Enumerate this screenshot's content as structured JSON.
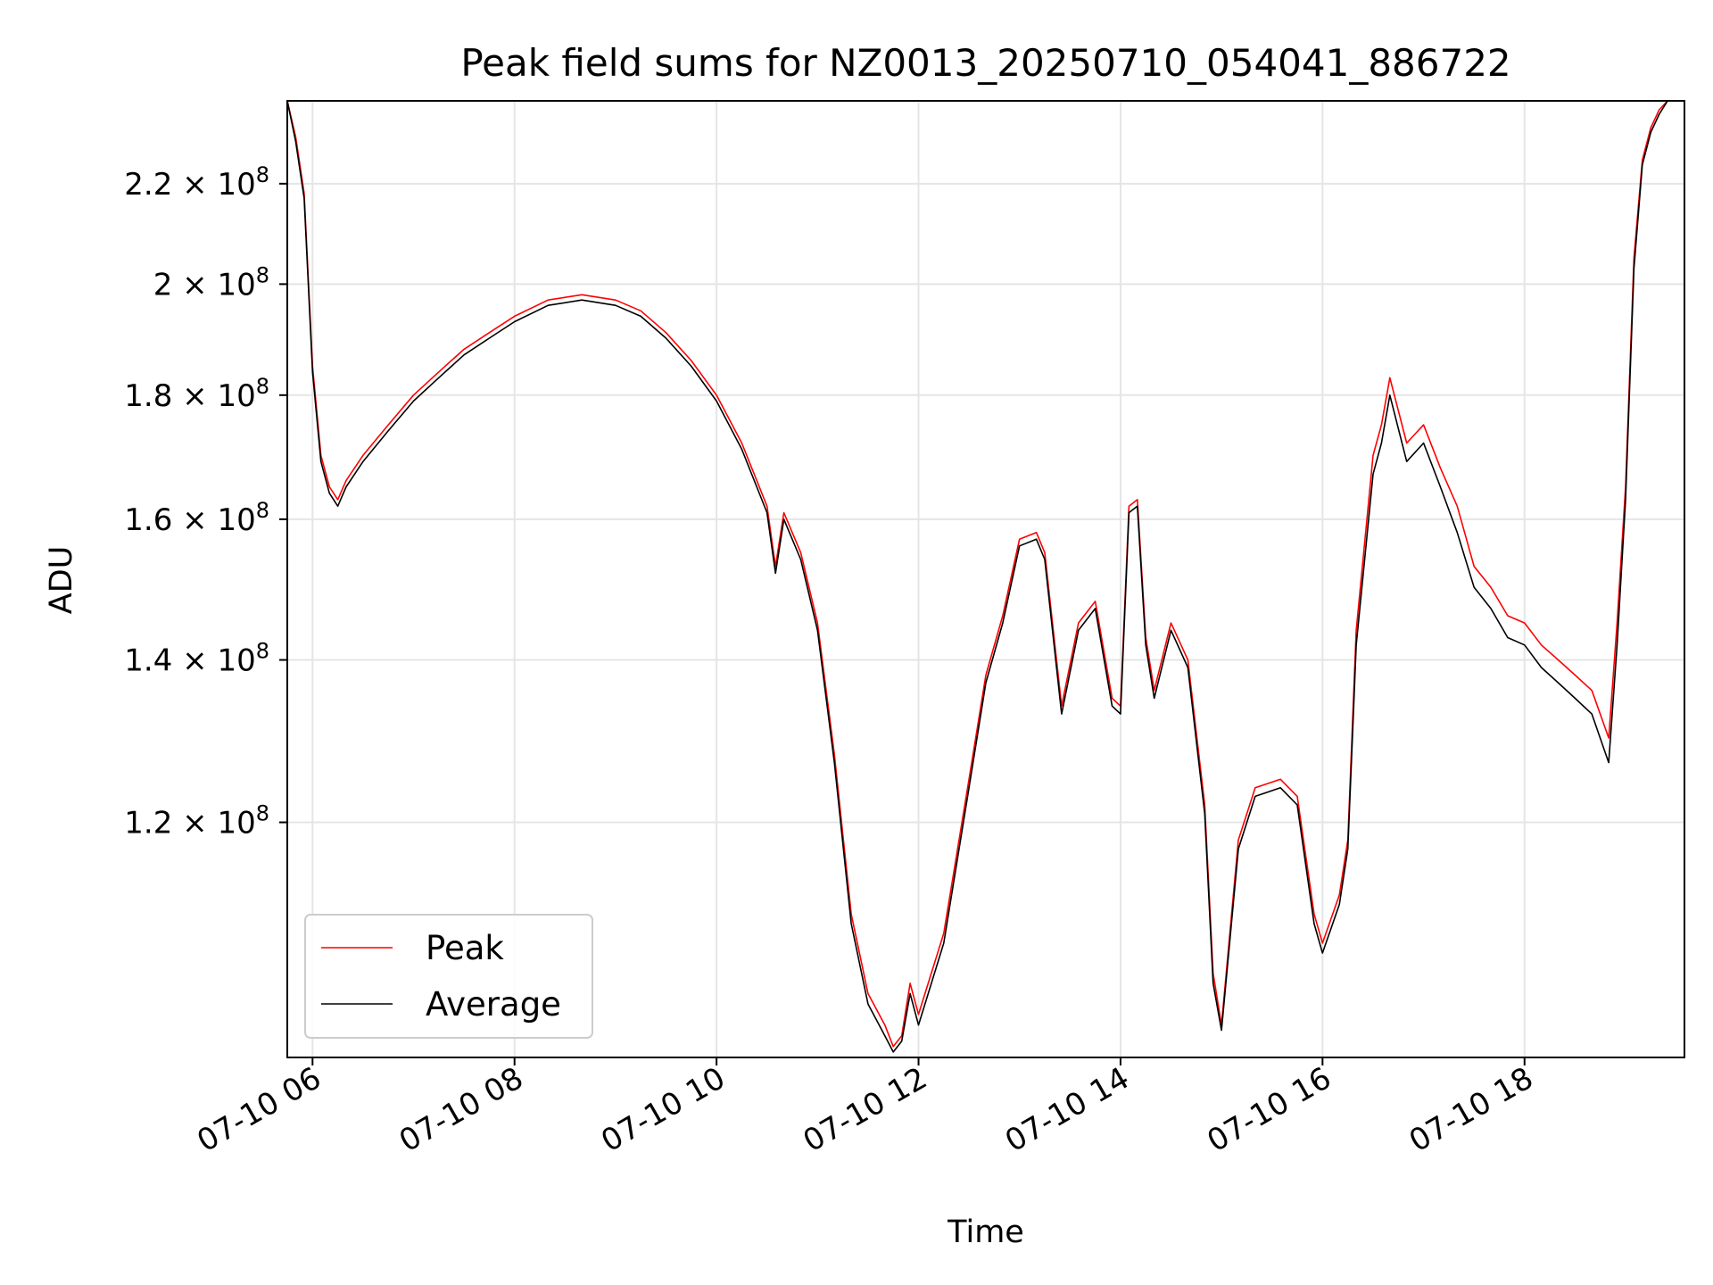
{
  "chart_data": {
    "type": "line",
    "title": "Peak field sums for NZ0013_20250710_054041_886722",
    "xlabel": "Time",
    "ylabel": "ADU",
    "y_scale": "log",
    "grid": true,
    "legend_position": "lower-left",
    "xlim": [
      "2025-07-10 05:45",
      "2025-07-10 19:35"
    ],
    "ylim": [
      96000000,
      238000000
    ],
    "x_ticks": [
      {
        "value": "2025-07-10 06:00",
        "label": "07-10 06"
      },
      {
        "value": "2025-07-10 08:00",
        "label": "07-10 08"
      },
      {
        "value": "2025-07-10 10:00",
        "label": "07-10 10"
      },
      {
        "value": "2025-07-10 12:00",
        "label": "07-10 12"
      },
      {
        "value": "2025-07-10 14:00",
        "label": "07-10 14"
      },
      {
        "value": "2025-07-10 16:00",
        "label": "07-10 16"
      },
      {
        "value": "2025-07-10 18:00",
        "label": "07-10 18"
      }
    ],
    "y_ticks": [
      {
        "value": 120000000,
        "mantissa": "1.2",
        "base": "10",
        "exp": "8"
      },
      {
        "value": 140000000,
        "mantissa": "1.4",
        "base": "10",
        "exp": "8"
      },
      {
        "value": 160000000,
        "mantissa": "1.6",
        "base": "10",
        "exp": "8"
      },
      {
        "value": 180000000,
        "mantissa": "1.8",
        "base": "10",
        "exp": "8"
      },
      {
        "value": 200000000,
        "mantissa": "2",
        "base": "10",
        "exp": "8"
      },
      {
        "value": 220000000,
        "mantissa": "2.2",
        "base": "10",
        "exp": "8"
      }
    ],
    "series": [
      {
        "name": "Peak",
        "color": "#ff0000",
        "x": [
          "2025-07-10 05:45",
          "2025-07-10 05:50",
          "2025-07-10 05:55",
          "2025-07-10 06:00",
          "2025-07-10 06:05",
          "2025-07-10 06:10",
          "2025-07-10 06:15",
          "2025-07-10 06:20",
          "2025-07-10 06:25",
          "2025-07-10 06:30",
          "2025-07-10 06:45",
          "2025-07-10 07:00",
          "2025-07-10 07:15",
          "2025-07-10 07:30",
          "2025-07-10 07:45",
          "2025-07-10 08:00",
          "2025-07-10 08:20",
          "2025-07-10 08:40",
          "2025-07-10 09:00",
          "2025-07-10 09:15",
          "2025-07-10 09:30",
          "2025-07-10 09:45",
          "2025-07-10 10:00",
          "2025-07-10 10:15",
          "2025-07-10 10:30",
          "2025-07-10 10:35",
          "2025-07-10 10:40",
          "2025-07-10 10:50",
          "2025-07-10 11:00",
          "2025-07-10 11:10",
          "2025-07-10 11:20",
          "2025-07-10 11:30",
          "2025-07-10 11:40",
          "2025-07-10 11:45",
          "2025-07-10 11:50",
          "2025-07-10 11:55",
          "2025-07-10 12:00",
          "2025-07-10 12:15",
          "2025-07-10 12:30",
          "2025-07-10 12:40",
          "2025-07-10 12:50",
          "2025-07-10 13:00",
          "2025-07-10 13:10",
          "2025-07-10 13:15",
          "2025-07-10 13:25",
          "2025-07-10 13:35",
          "2025-07-10 13:45",
          "2025-07-10 13:55",
          "2025-07-10 14:00",
          "2025-07-10 14:05",
          "2025-07-10 14:10",
          "2025-07-10 14:15",
          "2025-07-10 14:20",
          "2025-07-10 14:30",
          "2025-07-10 14:40",
          "2025-07-10 14:50",
          "2025-07-10 14:55",
          "2025-07-10 15:00",
          "2025-07-10 15:10",
          "2025-07-10 15:20",
          "2025-07-10 15:35",
          "2025-07-10 15:45",
          "2025-07-10 15:55",
          "2025-07-10 16:00",
          "2025-07-10 16:10",
          "2025-07-10 16:15",
          "2025-07-10 16:20",
          "2025-07-10 16:30",
          "2025-07-10 16:35",
          "2025-07-10 16:40",
          "2025-07-10 16:50",
          "2025-07-10 17:00",
          "2025-07-10 17:10",
          "2025-07-10 17:20",
          "2025-07-10 17:30",
          "2025-07-10 17:40",
          "2025-07-10 17:50",
          "2025-07-10 18:00",
          "2025-07-10 18:10",
          "2025-07-10 18:20",
          "2025-07-10 18:30",
          "2025-07-10 18:40",
          "2025-07-10 18:50",
          "2025-07-10 18:55",
          "2025-07-10 19:00",
          "2025-07-10 19:05",
          "2025-07-10 19:10",
          "2025-07-10 19:15",
          "2025-07-10 19:20",
          "2025-07-10 19:25",
          "2025-07-10 19:30",
          "2025-07-10 19:35"
        ],
        "y": [
          238000000,
          230000000,
          218000000,
          185000000,
          170000000,
          165000000,
          163000000,
          166000000,
          168000000,
          170000000,
          175000000,
          180000000,
          184000000,
          188000000,
          191000000,
          194000000,
          197000000,
          198000000,
          197000000,
          195000000,
          191000000,
          186000000,
          180000000,
          172000000,
          162000000,
          153000000,
          161000000,
          155000000,
          145000000,
          128000000,
          110000000,
          102000000,
          99000000,
          97000000,
          98000000,
          103000000,
          100000000,
          108000000,
          125000000,
          138000000,
          146000000,
          157000000,
          158000000,
          155000000,
          134000000,
          145000000,
          148000000,
          135000000,
          134000000,
          162000000,
          163000000,
          143000000,
          136000000,
          145000000,
          140000000,
          122000000,
          104000000,
          99000000,
          118000000,
          124000000,
          125000000,
          123000000,
          110000000,
          107000000,
          112000000,
          118000000,
          144000000,
          170000000,
          175000000,
          183000000,
          172000000,
          175000000,
          168000000,
          162000000,
          153000000,
          150000000,
          146000000,
          145000000,
          142000000,
          140000000,
          138000000,
          136000000,
          130000000,
          145000000,
          165000000,
          205000000,
          225000000,
          232000000,
          236000000,
          238000000,
          238000000,
          238000000
        ]
      },
      {
        "name": "Average",
        "color": "#000000",
        "x": [
          "2025-07-10 05:45",
          "2025-07-10 05:50",
          "2025-07-10 05:55",
          "2025-07-10 06:00",
          "2025-07-10 06:05",
          "2025-07-10 06:10",
          "2025-07-10 06:15",
          "2025-07-10 06:20",
          "2025-07-10 06:25",
          "2025-07-10 06:30",
          "2025-07-10 06:45",
          "2025-07-10 07:00",
          "2025-07-10 07:15",
          "2025-07-10 07:30",
          "2025-07-10 07:45",
          "2025-07-10 08:00",
          "2025-07-10 08:20",
          "2025-07-10 08:40",
          "2025-07-10 09:00",
          "2025-07-10 09:15",
          "2025-07-10 09:30",
          "2025-07-10 09:45",
          "2025-07-10 10:00",
          "2025-07-10 10:15",
          "2025-07-10 10:30",
          "2025-07-10 10:35",
          "2025-07-10 10:40",
          "2025-07-10 10:50",
          "2025-07-10 11:00",
          "2025-07-10 11:10",
          "2025-07-10 11:20",
          "2025-07-10 11:30",
          "2025-07-10 11:40",
          "2025-07-10 11:45",
          "2025-07-10 11:50",
          "2025-07-10 11:55",
          "2025-07-10 12:00",
          "2025-07-10 12:15",
          "2025-07-10 12:30",
          "2025-07-10 12:40",
          "2025-07-10 12:50",
          "2025-07-10 13:00",
          "2025-07-10 13:10",
          "2025-07-10 13:15",
          "2025-07-10 13:25",
          "2025-07-10 13:35",
          "2025-07-10 13:45",
          "2025-07-10 13:55",
          "2025-07-10 14:00",
          "2025-07-10 14:05",
          "2025-07-10 14:10",
          "2025-07-10 14:15",
          "2025-07-10 14:20",
          "2025-07-10 14:30",
          "2025-07-10 14:40",
          "2025-07-10 14:50",
          "2025-07-10 14:55",
          "2025-07-10 15:00",
          "2025-07-10 15:10",
          "2025-07-10 15:20",
          "2025-07-10 15:35",
          "2025-07-10 15:45",
          "2025-07-10 15:55",
          "2025-07-10 16:00",
          "2025-07-10 16:10",
          "2025-07-10 16:15",
          "2025-07-10 16:20",
          "2025-07-10 16:30",
          "2025-07-10 16:35",
          "2025-07-10 16:40",
          "2025-07-10 16:50",
          "2025-07-10 17:00",
          "2025-07-10 17:10",
          "2025-07-10 17:20",
          "2025-07-10 17:30",
          "2025-07-10 17:40",
          "2025-07-10 17:50",
          "2025-07-10 18:00",
          "2025-07-10 18:10",
          "2025-07-10 18:20",
          "2025-07-10 18:30",
          "2025-07-10 18:40",
          "2025-07-10 18:50",
          "2025-07-10 18:55",
          "2025-07-10 19:00",
          "2025-07-10 19:05",
          "2025-07-10 19:10",
          "2025-07-10 19:15",
          "2025-07-10 19:20",
          "2025-07-10 19:25",
          "2025-07-10 19:30",
          "2025-07-10 19:35"
        ],
        "y": [
          238000000,
          229000000,
          217000000,
          184000000,
          169000000,
          164000000,
          162000000,
          165000000,
          167000000,
          169000000,
          174000000,
          179000000,
          183000000,
          187000000,
          190000000,
          193000000,
          196000000,
          197000000,
          196000000,
          194000000,
          190000000,
          185000000,
          179000000,
          171000000,
          161000000,
          152000000,
          160000000,
          154000000,
          144000000,
          127000000,
          109000000,
          101000000,
          98000000,
          96500000,
          97500000,
          102000000,
          99000000,
          107000000,
          124000000,
          137000000,
          145000000,
          156000000,
          157000000,
          154000000,
          133000000,
          144000000,
          147000000,
          134000000,
          133000000,
          161000000,
          162000000,
          142000000,
          135000000,
          144000000,
          139000000,
          121000000,
          103000000,
          98500000,
          117000000,
          123000000,
          124000000,
          122000000,
          109000000,
          106000000,
          111000000,
          117000000,
          142000000,
          167000000,
          172000000,
          180000000,
          169000000,
          172000000,
          165000000,
          158000000,
          150000000,
          147000000,
          143000000,
          142000000,
          139000000,
          137000000,
          135000000,
          133000000,
          127000000,
          142000000,
          163000000,
          203000000,
          224000000,
          231000000,
          235000000,
          238000000,
          238000000,
          238000000
        ]
      }
    ]
  }
}
